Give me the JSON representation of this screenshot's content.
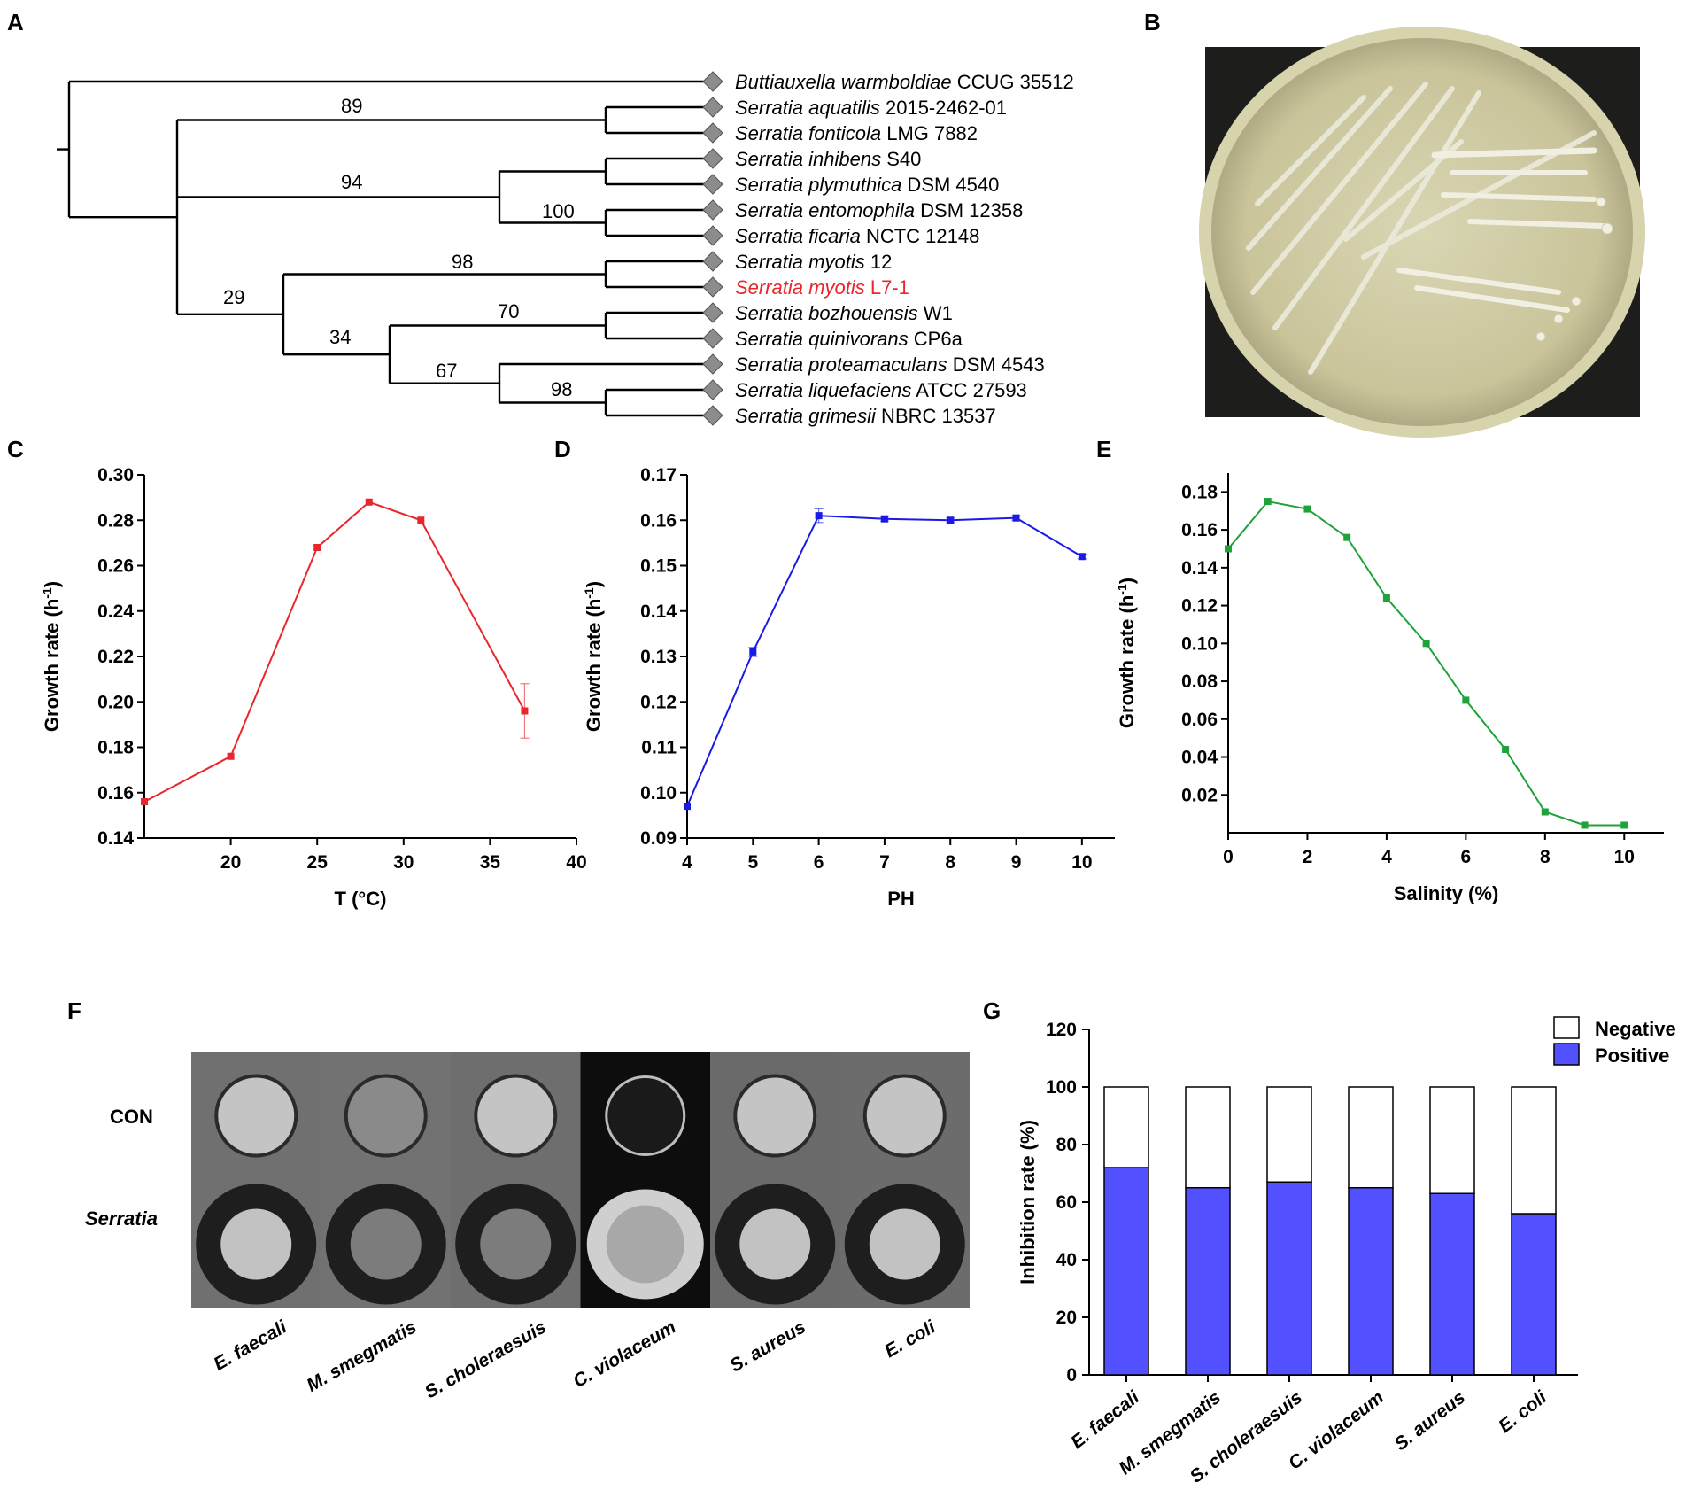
{
  "colors": {
    "temperature_series": "#e8262b",
    "ph_series": "#1a1ae6",
    "salinity_series": "#20a23a",
    "highlight_taxon": "#e8262b",
    "positive_bar": "#5250ff",
    "negative_bar": "#ffffff",
    "node_marker": "#8c8c8c"
  },
  "panels": {
    "A": "A",
    "B": "B",
    "C": "C",
    "D": "D",
    "E": "E",
    "F": "F",
    "G": "G"
  },
  "tree": {
    "taxa": [
      {
        "genus_species": "Buttiauxella warmboldiae",
        "strain": "CCUG 35512",
        "highlight": false
      },
      {
        "genus_species": "Serratia aquatilis",
        "strain": "2015-2462-01",
        "highlight": false
      },
      {
        "genus_species": "Serratia fonticola",
        "strain": "LMG 7882",
        "highlight": false
      },
      {
        "genus_species": "Serratia inhibens",
        "strain": "S40",
        "highlight": false
      },
      {
        "genus_species": "Serratia plymuthica",
        "strain": "DSM 4540",
        "highlight": false
      },
      {
        "genus_species": "Serratia entomophila",
        "strain": "DSM 12358",
        "highlight": false
      },
      {
        "genus_species": "Serratia ficaria",
        "strain": "NCTC 12148",
        "highlight": false
      },
      {
        "genus_species": "Serratia myotis",
        "strain": "12",
        "highlight": false
      },
      {
        "genus_species": "Serratia myotis",
        "strain": "L7-1",
        "highlight": true
      },
      {
        "genus_species": "Serratia bozhouensis",
        "strain": "W1",
        "highlight": false
      },
      {
        "genus_species": "Serratia quinivorans",
        "strain": "CP6a",
        "highlight": false
      },
      {
        "genus_species": "Serratia proteamaculans",
        "strain": "DSM 4543",
        "highlight": false
      },
      {
        "genus_species": "Serratia liquefaciens",
        "strain": "ATCC 27593",
        "highlight": false
      },
      {
        "genus_species": "Serratia grimesii",
        "strain": "NBRC 13537",
        "highlight": false
      }
    ],
    "bootstrap": {
      "aquatilis_fonticola": "89",
      "inhibens_group": "94",
      "entomophila_ficaria": "100",
      "myotis_pair": "98",
      "myotis_clade": "29",
      "lower_clade": "34",
      "bozhouensis_quinivorans": "70",
      "proteamaculans_group": "67",
      "liquefaciens_grimesii": "98"
    }
  },
  "plate_photo": {
    "description_visible": ""
  },
  "chart_data": [
    {
      "panel": "C",
      "type": "line",
      "xlabel": "T (°C)",
      "ylabel": "Growth rate (h",
      "ylabel_sup": "-1",
      "ylabel_tail": ")",
      "xlim": [
        15,
        40
      ],
      "ylim": [
        0.14,
        0.3
      ],
      "xticks": [
        "20",
        "25",
        "30",
        "35",
        "40"
      ],
      "yticks": [
        "0.14",
        "0.16",
        "0.18",
        "0.20",
        "0.22",
        "0.24",
        "0.26",
        "0.28",
        "0.30"
      ],
      "x": [
        15,
        20,
        25,
        28,
        31,
        37
      ],
      "y": [
        0.156,
        0.176,
        0.268,
        0.288,
        0.28,
        0.196
      ],
      "err": [
        0,
        0,
        0,
        0,
        0,
        0.012
      ]
    },
    {
      "panel": "D",
      "type": "line",
      "xlabel": "PH",
      "ylabel": "Growth rate (h",
      "ylabel_sup": "-1",
      "ylabel_tail": ")",
      "xlim": [
        4,
        10.5
      ],
      "ylim": [
        0.09,
        0.17
      ],
      "xticks": [
        "4",
        "5",
        "6",
        "7",
        "8",
        "9",
        "10"
      ],
      "yticks": [
        "0.09",
        "0.10",
        "0.11",
        "0.12",
        "0.13",
        "0.14",
        "0.15",
        "0.16",
        "0.17"
      ],
      "x": [
        4,
        5,
        6,
        7,
        8,
        9,
        10
      ],
      "y": [
        0.097,
        0.131,
        0.161,
        0.1603,
        0.16,
        0.1605,
        0.152
      ],
      "err": [
        0,
        0.001,
        0.0015,
        0.0005,
        0.0005,
        0.0005,
        0.0005
      ]
    },
    {
      "panel": "E",
      "type": "line",
      "xlabel": "Salinity (%)",
      "ylabel": "Growth rate (h",
      "ylabel_sup": "-1",
      "ylabel_tail": ")",
      "xlim": [
        0,
        11
      ],
      "ylim": [
        0,
        0.19
      ],
      "xticks": [
        "0",
        "2",
        "4",
        "6",
        "8",
        "10"
      ],
      "yticks": [
        "0.02",
        "0.04",
        "0.06",
        "0.08",
        "0.10",
        "0.12",
        "0.14",
        "0.16",
        "0.18"
      ],
      "x": [
        0,
        1,
        2,
        3,
        4,
        5,
        6,
        7,
        8,
        9,
        10
      ],
      "y": [
        0.15,
        0.175,
        0.171,
        0.156,
        0.124,
        0.1,
        0.07,
        0.044,
        0.011,
        0.004,
        0.004
      ],
      "err": [
        0,
        0,
        0,
        0,
        0,
        0,
        0,
        0,
        0,
        0,
        0
      ]
    },
    {
      "panel": "G",
      "type": "bar",
      "stacked": true,
      "ylabel": "Inhibition rate (%)",
      "ylim": [
        0,
        120
      ],
      "yticks": [
        "0",
        "20",
        "40",
        "60",
        "80",
        "100",
        "120"
      ],
      "categories": [
        "E. faecali",
        "M. smegmatis",
        "S. choleraesuis",
        "C. violaceum",
        "S. aureus",
        "E. coli"
      ],
      "series": [
        {
          "name": "Positive",
          "values": [
            72,
            65,
            67,
            65,
            63,
            56
          ]
        },
        {
          "name": "Negative",
          "values": [
            28,
            35,
            33,
            35,
            37,
            44
          ]
        }
      ],
      "legend_position": "top-right"
    }
  ],
  "panel_f": {
    "rows": [
      "CON",
      "Serratia"
    ],
    "columns": [
      "E. faecali",
      "M. smegmatis",
      "S. choleraesuis",
      "C. violaceum",
      "S. aureus",
      "E. coli"
    ]
  }
}
